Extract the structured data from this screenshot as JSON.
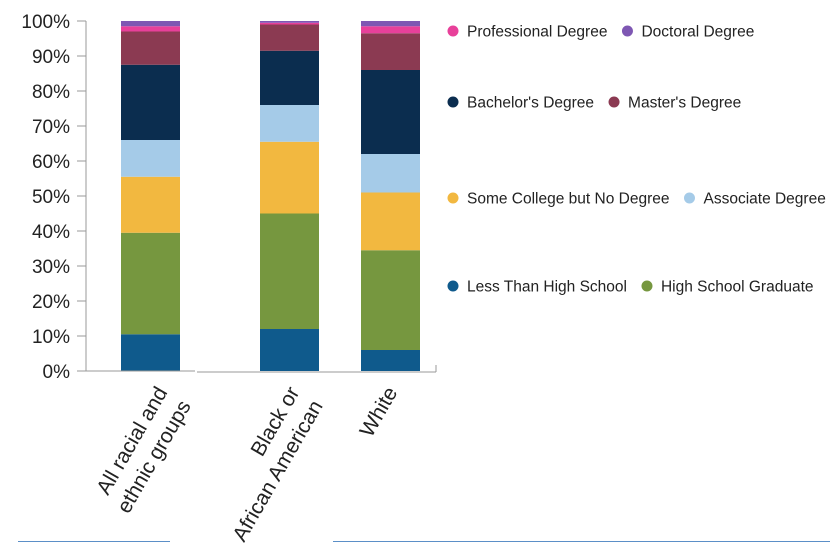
{
  "chart_data": {
    "type": "bar",
    "stacked": true,
    "categories": [
      [
        "All racial and",
        "ethnic groups"
      ],
      [
        "Black or",
        "African American"
      ],
      [
        "White"
      ]
    ],
    "yticks": [
      "0%",
      "10%",
      "20%",
      "30%",
      "40%",
      "50%",
      "60%",
      "70%",
      "80%",
      "90%",
      "100%"
    ],
    "ylim": [
      0,
      100
    ],
    "legend_placement": "right",
    "series": [
      {
        "name": "Less Than High School",
        "color": "#0f5a8c",
        "values": [
          10.5,
          12,
          6
        ]
      },
      {
        "name": "High School Graduate",
        "color": "#76973f",
        "values": [
          29,
          33,
          28.5
        ]
      },
      {
        "name": "Some College but No Degree",
        "color": "#f2b840",
        "values": [
          16,
          20.5,
          16.5
        ]
      },
      {
        "name": "Associate Degree",
        "color": "#a5cbe8",
        "values": [
          10.5,
          10.5,
          11
        ]
      },
      {
        "name": "Bachelor's Degree",
        "color": "#0b2d4f",
        "values": [
          21.5,
          15.5,
          24
        ]
      },
      {
        "name": "Master's Degree",
        "color": "#8b3a52",
        "values": [
          9.5,
          7.5,
          10.5
        ]
      },
      {
        "name": "Professional Degree",
        "color": "#e8409a",
        "values": [
          1.5,
          0.5,
          2
        ]
      },
      {
        "name": "Doctoral Degree",
        "color": "#7e57b3",
        "values": [
          1.5,
          0.5,
          1.5
        ]
      }
    ],
    "legend_rows": [
      [
        "Professional Degree",
        "Doctoral Degree"
      ],
      [
        "Bachelor's Degree",
        "Master's Degree"
      ],
      [
        "Some College but No Degree",
        "Associate Degree"
      ],
      [
        "Less Than High School",
        "High School Graduate"
      ]
    ]
  }
}
